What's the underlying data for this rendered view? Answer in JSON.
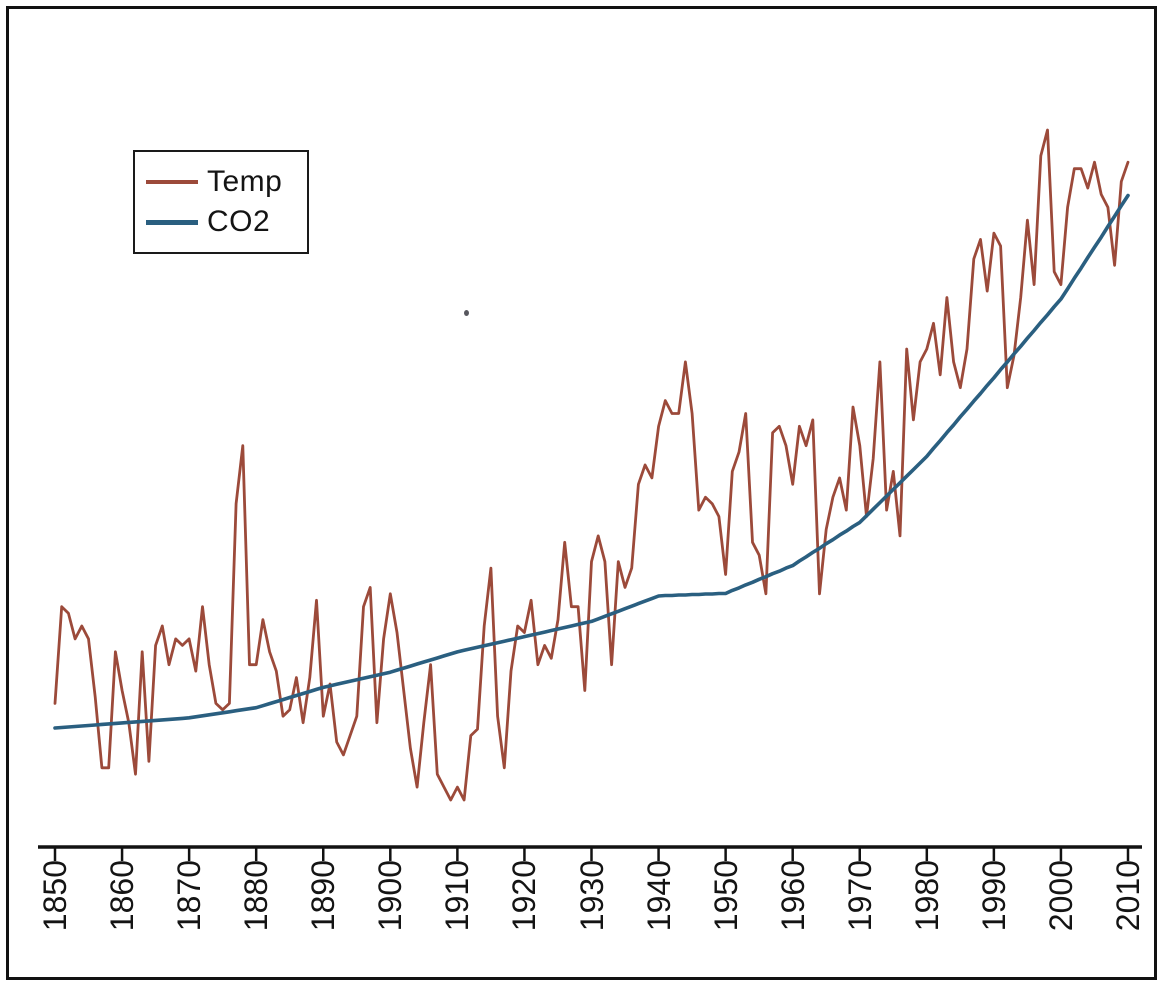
{
  "colors": {
    "axis": "#121212",
    "frame": "#121212",
    "temp_line": "#9c4a3a",
    "co2_line": "#2a5f80"
  },
  "chart_data": {
    "type": "line",
    "title": "",
    "grid": false,
    "legend_position": "top-left",
    "x_range": [
      1850,
      2010
    ],
    "x_tick_labels": [
      "1850",
      "1860",
      "1870",
      "1880",
      "1890",
      "1900",
      "1910",
      "1920",
      "1930",
      "1940",
      "1950",
      "1960",
      "1970",
      "1980",
      "1990",
      "2000",
      "2010"
    ],
    "y_axis_labels_visible": false,
    "series": [
      {
        "name": "Temp",
        "unit": "temperature anomaly (degC), unlabeled axis",
        "color": "#9c4a3a",
        "start_year": 1850,
        "step": 1,
        "values": [
          -0.37,
          -0.22,
          -0.23,
          -0.27,
          -0.25,
          -0.27,
          -0.36,
          -0.47,
          -0.47,
          -0.29,
          -0.35,
          -0.4,
          -0.48,
          -0.29,
          -0.46,
          -0.28,
          -0.25,
          -0.31,
          -0.27,
          -0.28,
          -0.27,
          -0.32,
          -0.22,
          -0.31,
          -0.37,
          -0.38,
          -0.37,
          -0.06,
          0.03,
          -0.31,
          -0.31,
          -0.24,
          -0.29,
          -0.32,
          -0.39,
          -0.38,
          -0.33,
          -0.4,
          -0.33,
          -0.21,
          -0.39,
          -0.34,
          -0.43,
          -0.45,
          -0.42,
          -0.39,
          -0.22,
          -0.19,
          -0.4,
          -0.27,
          -0.2,
          -0.26,
          -0.35,
          -0.44,
          -0.5,
          -0.4,
          -0.31,
          -0.48,
          -0.5,
          -0.52,
          -0.5,
          -0.52,
          -0.42,
          -0.41,
          -0.25,
          -0.16,
          -0.39,
          -0.47,
          -0.32,
          -0.25,
          -0.26,
          -0.21,
          -0.31,
          -0.28,
          -0.3,
          -0.24,
          -0.12,
          -0.22,
          -0.22,
          -0.35,
          -0.15,
          -0.11,
          -0.15,
          -0.31,
          -0.15,
          -0.19,
          -0.16,
          -0.03,
          0.0,
          -0.02,
          0.06,
          0.1,
          0.08,
          0.08,
          0.16,
          0.08,
          -0.07,
          -0.05,
          -0.06,
          -0.08,
          -0.17,
          -0.01,
          0.02,
          0.08,
          -0.12,
          -0.14,
          -0.2,
          0.05,
          0.06,
          0.03,
          -0.03,
          0.06,
          0.03,
          0.07,
          -0.2,
          -0.1,
          -0.05,
          -0.02,
          -0.07,
          0.09,
          0.03,
          -0.08,
          0.01,
          0.16,
          -0.07,
          -0.01,
          -0.11,
          0.18,
          0.07,
          0.16,
          0.18,
          0.22,
          0.14,
          0.26,
          0.16,
          0.12,
          0.18,
          0.32,
          0.35,
          0.27,
          0.36,
          0.34,
          0.12,
          0.17,
          0.26,
          0.38,
          0.28,
          0.48,
          0.52,
          0.3,
          0.28,
          0.4,
          0.46,
          0.46,
          0.43,
          0.47,
          0.42,
          0.4,
          0.31,
          0.44,
          0.47
        ]
      },
      {
        "name": "CO2",
        "unit": "concentration (ppm), unlabeled axis",
        "color": "#2a5f80",
        "start_year": 1850,
        "step": 1,
        "values": [
          285.0,
          285.1,
          285.2,
          285.3,
          285.4,
          285.5,
          285.6,
          285.7,
          285.8,
          285.9,
          286.0,
          286.1,
          286.2,
          286.3,
          286.4,
          286.5,
          286.6,
          286.7,
          286.8,
          286.9,
          287.0,
          287.2,
          287.4,
          287.6,
          287.8,
          288.0,
          288.2,
          288.4,
          288.6,
          288.8,
          289.0,
          289.4,
          289.8,
          290.2,
          290.6,
          291.0,
          291.4,
          291.8,
          292.2,
          292.6,
          293.0,
          293.3,
          293.6,
          293.9,
          294.2,
          294.5,
          294.8,
          295.1,
          295.4,
          295.7,
          296.0,
          296.4,
          296.8,
          297.2,
          297.6,
          298.0,
          298.4,
          298.8,
          299.2,
          299.6,
          300.0,
          300.3,
          300.6,
          300.9,
          301.2,
          301.5,
          301.8,
          302.1,
          302.4,
          302.7,
          303.0,
          303.3,
          303.6,
          303.9,
          304.2,
          304.5,
          304.8,
          305.1,
          305.4,
          305.7,
          306.0,
          306.5,
          307.0,
          307.5,
          308.0,
          308.5,
          309.0,
          309.5,
          310.0,
          310.5,
          311.0,
          311.1,
          311.1,
          311.2,
          311.2,
          311.3,
          311.3,
          311.4,
          311.4,
          311.5,
          311.5,
          312.1,
          312.6,
          313.2,
          313.7,
          314.3,
          314.8,
          315.4,
          315.9,
          316.5,
          317.0,
          317.9,
          318.7,
          319.6,
          320.4,
          321.3,
          322.1,
          323.0,
          323.8,
          324.7,
          325.5,
          326.8,
          328.1,
          329.4,
          330.7,
          332.0,
          333.3,
          334.6,
          335.9,
          337.2,
          338.5,
          340.1,
          341.6,
          343.2,
          344.7,
          346.3,
          347.8,
          349.4,
          350.9,
          352.5,
          354.0,
          355.6,
          357.1,
          358.7,
          360.2,
          361.8,
          363.3,
          364.9,
          366.4,
          368.0,
          369.5,
          371.5,
          373.6,
          375.6,
          377.7,
          379.7,
          381.7,
          383.8,
          385.8,
          387.9,
          389.9
        ]
      }
    ]
  }
}
